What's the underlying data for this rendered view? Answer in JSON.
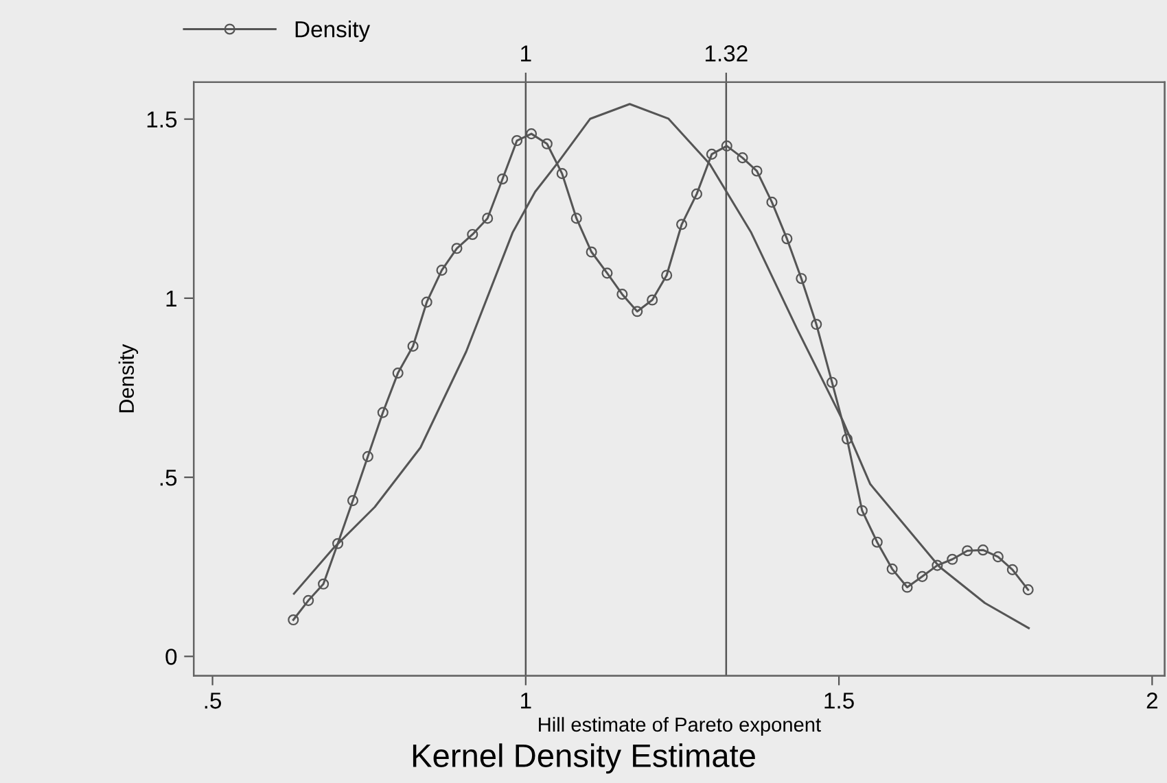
{
  "chart_data": {
    "type": "line",
    "title": "Kernel Density Estimate",
    "xlabel": "Hill estimate of Pareto exponent",
    "ylabel": "Density",
    "xlim": [
      0.47,
      2.02
    ],
    "xticks": [
      {
        "value": 0.5,
        "label": ".5"
      },
      1,
      1.5,
      2
    ],
    "x2lim": [
      0.47,
      2.02
    ],
    "x2ticks": [
      1,
      1.32
    ],
    "ylim": [
      -0.054,
      1.603
    ],
    "yticks": [
      0,
      {
        "value": 0.5,
        "label": ".5"
      },
      1,
      1.5
    ],
    "grid": false,
    "legend": "top left",
    "ref_lines": [
      {
        "axis": "x",
        "value": 1,
        "color": "#555555"
      },
      {
        "axis": "x",
        "value": 1.32,
        "color": "#555555"
      }
    ],
    "series": [
      {
        "name": "Density",
        "color": "#555555",
        "marker": "circle",
        "x": [
          0.629,
          0.653,
          0.677,
          0.7,
          0.724,
          0.748,
          0.772,
          0.796,
          0.82,
          0.842,
          0.866,
          0.89,
          0.915,
          0.939,
          0.963,
          0.986,
          1.009,
          1.034,
          1.058,
          1.081,
          1.105,
          1.13,
          1.154,
          1.178,
          1.202,
          1.225,
          1.249,
          1.273,
          1.297,
          1.321,
          1.346,
          1.369,
          1.393,
          1.417,
          1.44,
          1.464,
          1.489,
          1.513,
          1.537,
          1.561,
          1.585,
          1.609,
          1.633,
          1.657,
          1.681,
          1.705,
          1.73,
          1.754,
          1.777,
          1.802
        ],
        "values": [
          0.102,
          0.156,
          0.202,
          0.315,
          0.435,
          0.558,
          0.681,
          0.791,
          0.866,
          0.989,
          1.078,
          1.139,
          1.178,
          1.223,
          1.333,
          1.44,
          1.459,
          1.431,
          1.348,
          1.223,
          1.129,
          1.07,
          1.011,
          0.963,
          0.995,
          1.064,
          1.206,
          1.291,
          1.402,
          1.425,
          1.392,
          1.355,
          1.268,
          1.166,
          1.055,
          0.927,
          0.765,
          0.607,
          0.407,
          0.319,
          0.244,
          0.193,
          0.223,
          0.254,
          0.271,
          0.295,
          0.297,
          0.278,
          0.242,
          0.186
        ]
      },
      {
        "color": "#555555",
        "marker": "none",
        "x": [
          0.63,
          0.693,
          0.759,
          0.832,
          0.905,
          0.979,
          1.015,
          1.052,
          1.103,
          1.166,
          1.228,
          1.294,
          1.36,
          1.433,
          1.506,
          1.55,
          1.66,
          1.733,
          1.803
        ],
        "values": [
          0.175,
          0.302,
          0.417,
          0.583,
          0.851,
          1.183,
          1.297,
          1.38,
          1.501,
          1.542,
          1.501,
          1.374,
          1.183,
          0.915,
          0.659,
          0.481,
          0.251,
          0.149,
          0.079
        ]
      }
    ]
  }
}
